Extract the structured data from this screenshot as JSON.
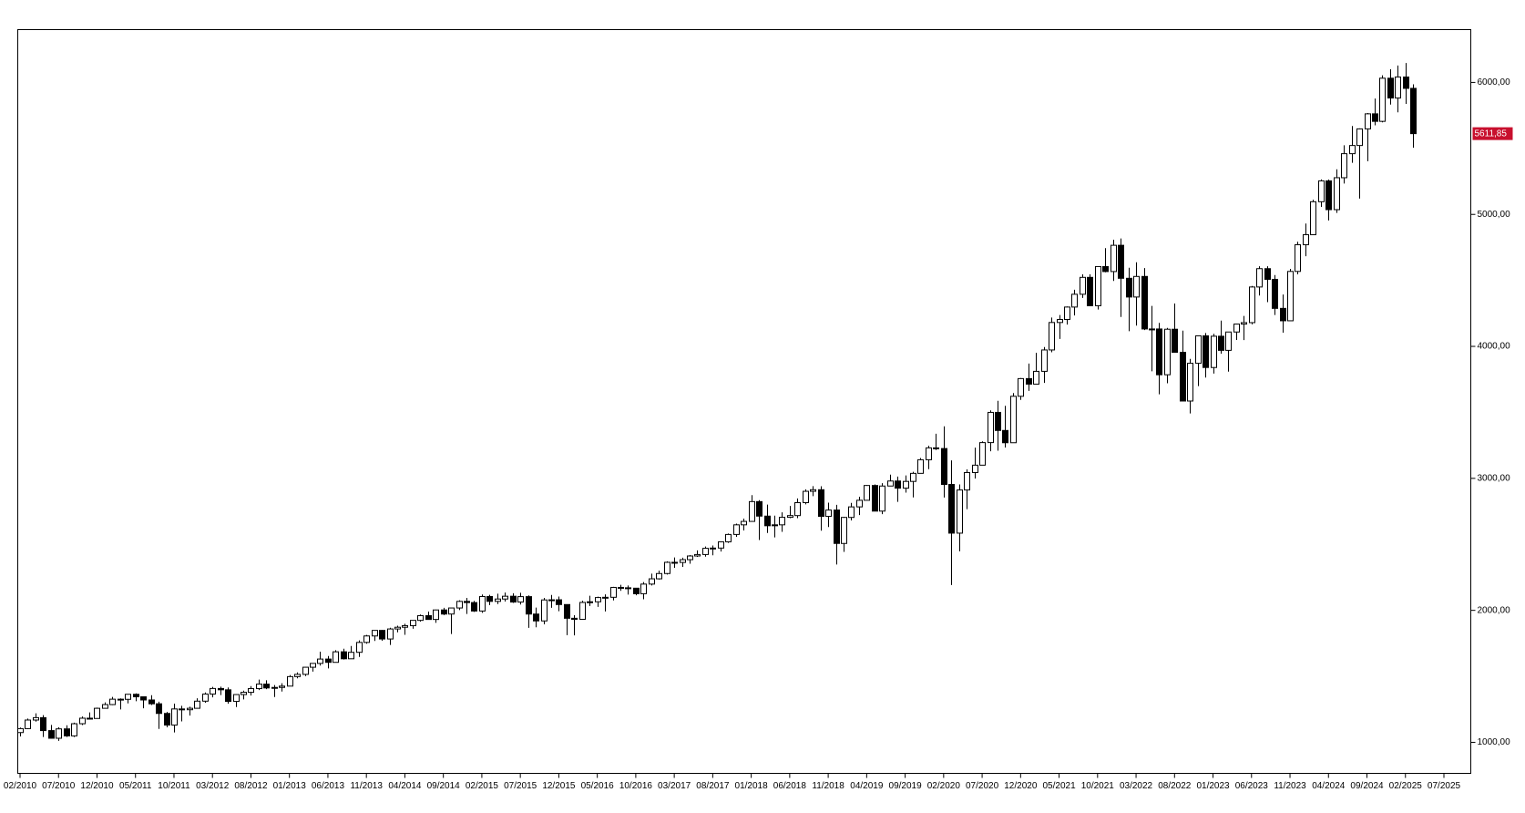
{
  "chart_data": {
    "type": "candlestick",
    "categories": [
      "02/2010",
      null,
      null,
      null,
      null,
      "07/2010",
      null,
      null,
      null,
      null,
      "12/2010",
      null,
      null,
      null,
      null,
      "05/2011",
      null,
      null,
      null,
      null,
      "10/2011",
      null,
      null,
      null,
      null,
      "03/2012",
      null,
      null,
      null,
      null,
      "08/2012",
      null,
      null,
      null,
      null,
      "01/2013",
      null,
      null,
      null,
      null,
      "06/2013",
      null,
      null,
      null,
      null,
      "11/2013",
      null,
      null,
      null,
      null,
      "04/2014",
      null,
      null,
      null,
      null,
      "09/2014",
      null,
      null,
      null,
      null,
      "02/2015",
      null,
      null,
      null,
      null,
      "07/2015",
      null,
      null,
      null,
      null,
      "12/2015",
      null,
      null,
      null,
      null,
      "05/2016",
      null,
      null,
      null,
      null,
      "10/2016",
      null,
      null,
      null,
      null,
      "03/2017",
      null,
      null,
      null,
      null,
      "08/2017",
      null,
      null,
      null,
      null,
      "01/2018",
      null,
      null,
      null,
      null,
      "06/2018",
      null,
      null,
      null,
      null,
      "11/2018",
      null,
      null,
      null,
      null,
      "04/2019",
      null,
      null,
      null,
      null,
      "09/2019",
      null,
      null,
      null,
      null,
      "02/2020",
      null,
      null,
      null,
      null,
      "07/2020",
      null,
      null,
      null,
      null,
      "12/2020",
      null,
      null,
      null,
      null,
      "05/2021",
      null,
      null,
      null,
      null,
      "10/2021",
      null,
      null,
      null,
      null,
      "03/2022",
      null,
      null,
      null,
      null,
      "08/2022",
      null,
      null,
      null,
      null,
      "01/2023",
      null,
      null,
      null,
      null,
      "06/2023",
      null,
      null,
      null,
      null,
      "11/2023",
      null,
      null,
      null,
      null,
      "04/2024",
      null,
      null,
      null,
      null,
      "09/2024",
      null,
      null,
      null,
      null,
      "02/2025",
      null,
      null,
      null,
      null,
      "07/2025"
    ],
    "open": [
      1074,
      1104,
      1169,
      1187,
      1089,
      1031,
      1102,
      1049,
      1141,
      1183,
      1181,
      1258,
      1286,
      1327,
      1326,
      1364,
      1345,
      1321,
      1292,
      1219,
      1131,
      1253,
      1247,
      1258,
      1312,
      1366,
      1408,
      1398,
      1310,
      1362,
      1379,
      1407,
      1441,
      1412,
      1416,
      1426,
      1498,
      1515,
      1569,
      1598,
      1631,
      1606,
      1686,
      1633,
      1682,
      1757,
      1806,
      1848,
      1783,
      1859,
      1872,
      1884,
      1924,
      1960,
      1931,
      2003,
      1972,
      2018,
      2068,
      2059,
      1995,
      2105,
      2068,
      2086,
      2107,
      2063,
      2104,
      1972,
      1920,
      2079,
      2080,
      2044,
      1940,
      1932,
      2060,
      2065,
      2097,
      2099,
      2174,
      2171,
      2168,
      2126,
      2199,
      2239,
      2279,
      2364,
      2363,
      2384,
      2412,
      2423,
      2470,
      2472,
      2519,
      2575,
      2648,
      2674,
      2824,
      2714,
      2641,
      2648,
      2705,
      2718,
      2816,
      2902,
      2914,
      2712,
      2760,
      2507,
      2704,
      2784,
      2834,
      2946,
      2752,
      2942,
      2980,
      2926,
      2977,
      3038,
      3141,
      3231,
      3226,
      2954,
      2585,
      2912,
      3044,
      3100,
      3271,
      3500,
      3363,
      3270,
      3622,
      3756,
      3714,
      3811,
      3973,
      4181,
      4204,
      4298,
      4395,
      4523,
      4308,
      4605,
      4567,
      4766,
      4516,
      4374,
      4530,
      4132,
      4132,
      3785,
      4130,
      3955,
      3586,
      3872,
      4080,
      3840,
      4077,
      3970,
      4109,
      4169,
      4180,
      4450,
      4589,
      4508,
      4288,
      4194,
      4568,
      4770,
      4846,
      5096,
      5254,
      5036,
      5278,
      5460,
      5522,
      5648,
      5762,
      5705,
      6032,
      5882,
      6041,
      5955,
      null,
      null,
      null,
      null
    ],
    "high": [
      1112,
      1180,
      1220,
      1206,
      1132,
      1115,
      1129,
      1149,
      1196,
      1227,
      1263,
      1303,
      1344,
      1333,
      1364,
      1371,
      1346,
      1357,
      1308,
      1230,
      1293,
      1277,
      1270,
      1334,
      1378,
      1420,
      1422,
      1416,
      1364,
      1392,
      1426,
      1475,
      1470,
      1434,
      1448,
      1510,
      1530,
      1570,
      1598,
      1687,
      1654,
      1698,
      1709,
      1730,
      1772,
      1814,
      1849,
      1851,
      1868,
      1884,
      1898,
      1925,
      1968,
      1991,
      2005,
      2019,
      2018,
      2076,
      2094,
      2072,
      2120,
      2118,
      2126,
      2135,
      2130,
      2133,
      2113,
      2021,
      2094,
      2117,
      2105,
      2044,
      1963,
      2073,
      2111,
      2104,
      2121,
      2178,
      2194,
      2188,
      2169,
      2214,
      2278,
      2301,
      2371,
      2401,
      2399,
      2419,
      2454,
      2484,
      2491,
      2520,
      2582,
      2657,
      2695,
      2873,
      2835,
      2801,
      2718,
      2743,
      2791,
      2848,
      2917,
      2941,
      2940,
      2816,
      2800,
      2708,
      2814,
      2861,
      2949,
      2954,
      2964,
      3028,
      3014,
      3022,
      3050,
      3154,
      3248,
      3338,
      3394,
      3136,
      2954,
      3068,
      3233,
      3280,
      3515,
      3588,
      3550,
      3646,
      3760,
      3870,
      3951,
      3995,
      4219,
      4238,
      4302,
      4429,
      4546,
      4546,
      4608,
      4744,
      4808,
      4818,
      4596,
      4637,
      4593,
      4307,
      4178,
      4140,
      4325,
      4119,
      3905,
      4080,
      4101,
      4095,
      4195,
      4110,
      4170,
      4231,
      4458,
      4607,
      4607,
      4541,
      4393,
      4587,
      4793,
      4931,
      5111,
      5265,
      5264,
      5342,
      5524,
      5670,
      5652,
      5768,
      5878,
      6054,
      6100,
      6128,
      6147,
      5986,
      null,
      null,
      null,
      null
    ],
    "low": [
      1045,
      1101,
      1157,
      1040,
      1028,
      1011,
      1040,
      1040,
      1131,
      1174,
      1180,
      1257,
      1282,
      1249,
      1295,
      1311,
      1258,
      1283,
      1102,
      1114,
      1075,
      1159,
      1203,
      1258,
      1300,
      1341,
      1358,
      1292,
      1267,
      1325,
      1355,
      1396,
      1403,
      1343,
      1385,
      1426,
      1485,
      1502,
      1536,
      1582,
      1560,
      1605,
      1627,
      1633,
      1647,
      1747,
      1768,
      1770,
      1738,
      1834,
      1815,
      1860,
      1915,
      1930,
      1905,
      1964,
      1821,
      2002,
      1973,
      1988,
      1981,
      2040,
      2048,
      2067,
      2056,
      2044,
      1867,
      1872,
      1894,
      2019,
      1993,
      1812,
      1810,
      1932,
      2033,
      2026,
      1992,
      2075,
      2148,
      2119,
      2114,
      2084,
      2188,
      2233,
      2271,
      2322,
      2329,
      2353,
      2405,
      2407,
      2417,
      2446,
      2511,
      2557,
      2605,
      2673,
      2533,
      2586,
      2553,
      2595,
      2699,
      2699,
      2803,
      2865,
      2604,
      2631,
      2347,
      2443,
      2681,
      2722,
      2834,
      2751,
      2729,
      2942,
      2822,
      2892,
      2856,
      3038,
      3070,
      3215,
      2855,
      2192,
      2447,
      2767,
      2999,
      3100,
      3205,
      3210,
      3234,
      3270,
      3595,
      3663,
      3714,
      3723,
      3955,
      4056,
      4165,
      4234,
      4367,
      4306,
      4279,
      4561,
      4496,
      4223,
      4115,
      4157,
      4124,
      3811,
      3637,
      3721,
      3955,
      3585,
      3492,
      3699,
      3764,
      3794,
      3944,
      3809,
      4049,
      4048,
      4167,
      4385,
      4335,
      4238,
      4104,
      4194,
      4546,
      4683,
      4846,
      5057,
      4954,
      5011,
      5234,
      5391,
      5120,
      5403,
      5675,
      5697,
      5832,
      5773,
      5837,
      5505,
      null,
      null,
      null,
      null
    ],
    "close": [
      1104,
      1169,
      1187,
      1089,
      1031,
      1102,
      1049,
      1141,
      1183,
      1181,
      1258,
      1286,
      1327,
      1326,
      1364,
      1345,
      1321,
      1292,
      1219,
      1131,
      1253,
      1247,
      1258,
      1312,
      1366,
      1408,
      1398,
      1310,
      1362,
      1379,
      1407,
      1441,
      1412,
      1416,
      1426,
      1498,
      1515,
      1569,
      1598,
      1631,
      1606,
      1686,
      1633,
      1682,
      1757,
      1806,
      1848,
      1783,
      1859,
      1872,
      1884,
      1924,
      1960,
      1931,
      2003,
      1972,
      2018,
      2068,
      2059,
      1995,
      2105,
      2068,
      2086,
      2107,
      2063,
      2104,
      1972,
      1920,
      2079,
      2080,
      2044,
      1940,
      1932,
      2060,
      2065,
      2097,
      2099,
      2174,
      2171,
      2168,
      2126,
      2199,
      2239,
      2279,
      2364,
      2363,
      2384,
      2412,
      2423,
      2470,
      2472,
      2519,
      2575,
      2648,
      2674,
      2824,
      2714,
      2641,
      2648,
      2705,
      2718,
      2816,
      2902,
      2914,
      2712,
      2760,
      2507,
      2704,
      2784,
      2834,
      2946,
      2752,
      2942,
      2980,
      2926,
      2977,
      3038,
      3141,
      3231,
      3226,
      2954,
      2585,
      2912,
      3044,
      3100,
      3271,
      3500,
      3363,
      3270,
      3622,
      3756,
      3714,
      3811,
      3973,
      4181,
      4204,
      4298,
      4395,
      4523,
      4308,
      4605,
      4567,
      4766,
      4516,
      4374,
      4530,
      4132,
      4132,
      3785,
      4130,
      3955,
      3586,
      3872,
      4080,
      3840,
      4077,
      3970,
      4109,
      4169,
      4180,
      4450,
      4589,
      4508,
      4288,
      4194,
      4568,
      4770,
      4846,
      5096,
      5254,
      5036,
      5278,
      5460,
      5522,
      5648,
      5762,
      5705,
      6032,
      5882,
      6041,
      5955,
      5611.85,
      null,
      null,
      null,
      null
    ],
    "up_color": "#ffffff",
    "down_color": "#000000",
    "ylim": [
      765,
      6400
    ],
    "yticks": [
      {
        "value": 1000,
        "label": "1000,00"
      },
      {
        "value": 2000,
        "label": "2000,00"
      },
      {
        "value": 3000,
        "label": "3000,00"
      },
      {
        "value": 4000,
        "label": "4000,00"
      },
      {
        "value": 5000,
        "label": "5000,00"
      },
      {
        "value": 6000,
        "label": "6000,00"
      }
    ],
    "last_label": {
      "value": 5611.85,
      "label": "5611,85"
    },
    "last_label_color": "#c8102e"
  }
}
